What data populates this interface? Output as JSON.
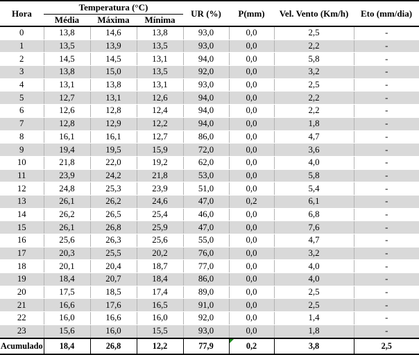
{
  "header": {
    "hora": "Hora",
    "temperatura": "Temperatura (°C)",
    "sub": [
      "Média",
      "Máxima",
      "Mínima"
    ],
    "ur": "UR (%)",
    "p": "P(mm)",
    "vel_vento": "Vel. Vento (Km/h)",
    "eto": "Eto (mm/dia)"
  },
  "rows": [
    [
      "0",
      "13,8",
      "14,6",
      "13,8",
      "93,0",
      "0,0",
      "2,5",
      "-"
    ],
    [
      "1",
      "13,5",
      "13,9",
      "13,5",
      "93,0",
      "0,0",
      "2,2",
      "-"
    ],
    [
      "2",
      "14,5",
      "14,5",
      "13,1",
      "94,0",
      "0,0",
      "5,8",
      "-"
    ],
    [
      "3",
      "13,8",
      "15,0",
      "13,5",
      "92,0",
      "0,0",
      "3,2",
      "-"
    ],
    [
      "4",
      "13,1",
      "13,8",
      "13,1",
      "93,0",
      "0,0",
      "2,5",
      "-"
    ],
    [
      "5",
      "12,7",
      "13,1",
      "12,6",
      "94,0",
      "0,0",
      "2,2",
      "-"
    ],
    [
      "6",
      "12,6",
      "12,8",
      "12,4",
      "94,0",
      "0,0",
      "2,2",
      "-"
    ],
    [
      "7",
      "12,8",
      "12,9",
      "12,2",
      "94,0",
      "0,0",
      "1,8",
      "-"
    ],
    [
      "8",
      "16,1",
      "16,1",
      "12,7",
      "86,0",
      "0,0",
      "4,7",
      "-"
    ],
    [
      "9",
      "19,4",
      "19,5",
      "15,9",
      "72,0",
      "0,0",
      "3,6",
      "-"
    ],
    [
      "10",
      "21,8",
      "22,0",
      "19,2",
      "62,0",
      "0,0",
      "4,0",
      "-"
    ],
    [
      "11",
      "23,9",
      "24,2",
      "21,8",
      "53,0",
      "0,0",
      "5,8",
      "-"
    ],
    [
      "12",
      "24,8",
      "25,3",
      "23,9",
      "51,0",
      "0,0",
      "5,4",
      "-"
    ],
    [
      "13",
      "26,1",
      "26,2",
      "24,6",
      "47,0",
      "0,2",
      "6,1",
      "-"
    ],
    [
      "14",
      "26,2",
      "26,5",
      "25,4",
      "46,0",
      "0,0",
      "6,8",
      "-"
    ],
    [
      "15",
      "26,1",
      "26,8",
      "25,9",
      "47,0",
      "0,0",
      "7,6",
      "-"
    ],
    [
      "16",
      "25,6",
      "26,3",
      "25,6",
      "55,0",
      "0,0",
      "4,7",
      "-"
    ],
    [
      "17",
      "20,3",
      "25,5",
      "20,2",
      "76,0",
      "0,0",
      "3,2",
      "-"
    ],
    [
      "18",
      "20,1",
      "20,4",
      "18,7",
      "77,0",
      "0,0",
      "4,0",
      "-"
    ],
    [
      "19",
      "18,4",
      "20,7",
      "18,4",
      "86,0",
      "0,0",
      "4,0",
      "-"
    ],
    [
      "20",
      "17,5",
      "18,5",
      "17,4",
      "89,0",
      "0,0",
      "2,5",
      "-"
    ],
    [
      "21",
      "16,6",
      "17,6",
      "16,5",
      "91,0",
      "0,0",
      "2,5",
      "-"
    ],
    [
      "22",
      "16,0",
      "16,6",
      "16,0",
      "92,0",
      "0,0",
      "1,4",
      "-"
    ],
    [
      "23",
      "15,6",
      "16,0",
      "15,5",
      "93,0",
      "0,0",
      "1,8",
      "-"
    ]
  ],
  "footer": {
    "label": "Acumulado",
    "values": [
      "18,4",
      "26,8",
      "12,2",
      "77,9",
      "0,2",
      "3,8",
      "2,5"
    ],
    "flag_icon": "comment-flag"
  },
  "colors": {
    "stripe": "#d9d9d9",
    "grid_line": "#b3b3b3",
    "rule": "#000000",
    "flag_green": "#1f8a1f"
  }
}
